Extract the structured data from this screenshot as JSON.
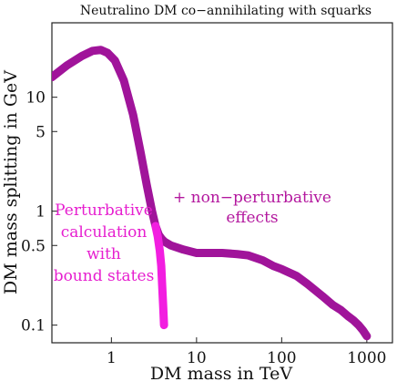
{
  "chart_data": {
    "type": "line",
    "title": "Neutralino DM co−annihilating with squarks",
    "xlabel": "DM mass in TeV",
    "ylabel": "DM mass splitting in GeV",
    "xscale": "log",
    "yscale": "log",
    "xlim": [
      0.2,
      2000
    ],
    "ylim": [
      0.07,
      45
    ],
    "x_ticks": [
      {
        "value": 1,
        "label": "1"
      },
      {
        "value": 10,
        "label": "10"
      },
      {
        "value": 100,
        "label": "100"
      },
      {
        "value": 1000,
        "label": "1000"
      }
    ],
    "y_ticks": [
      {
        "value": 0.1,
        "label": "0.1"
      },
      {
        "value": 0.5,
        "label": "0.5"
      },
      {
        "value": 1,
        "label": "1"
      },
      {
        "value": 5,
        "label": "5"
      },
      {
        "value": 10,
        "label": "10"
      }
    ],
    "grid": false,
    "series": [
      {
        "color": "#a0149a",
        "x": [
          0.2,
          0.3,
          0.45,
          0.6,
          0.75,
          0.9,
          1.1,
          1.4,
          1.8,
          2.2,
          2.6,
          3.0,
          3.3,
          3.6,
          3.9,
          4.2,
          5.0,
          7.0,
          10,
          15,
          20,
          30,
          40,
          60,
          80,
          100,
          150,
          200,
          300,
          400,
          500,
          600,
          700,
          800,
          900,
          1000
        ],
        "y": [
          15,
          19,
          23,
          25.5,
          26,
          24.5,
          21,
          14,
          7,
          3.3,
          1.7,
          1.0,
          0.74,
          0.62,
          0.57,
          0.54,
          0.5,
          0.46,
          0.43,
          0.43,
          0.43,
          0.42,
          0.41,
          0.37,
          0.33,
          0.31,
          0.27,
          0.23,
          0.18,
          0.15,
          0.135,
          0.12,
          0.11,
          0.1,
          0.09,
          0.08
        ]
      },
      {
        "color": "#f21ee0",
        "x": [
          3.3,
          3.5,
          3.7,
          3.85,
          3.95,
          4.05,
          4.15
        ],
        "y": [
          0.74,
          0.6,
          0.45,
          0.33,
          0.22,
          0.15,
          0.1
        ]
      }
    ],
    "annotations": [
      {
        "lines": [
          "Perturbative",
          "calculation",
          "with",
          "bound states"
        ],
        "color": "#e61ecf"
      },
      {
        "lines": [
          "+ non−perturbative",
          "effects"
        ],
        "color": "#b3179e"
      }
    ]
  }
}
